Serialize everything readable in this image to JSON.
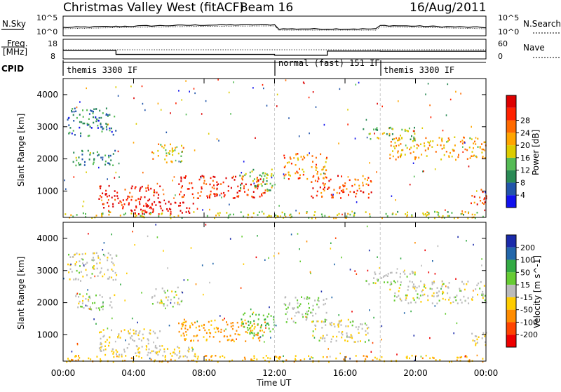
{
  "header": {
    "title": "Christmas Valley West (fitACF)",
    "beam": "Beam 16",
    "date": "16/Aug/2011"
  },
  "noise_panel": {
    "left_label": "N.Sky",
    "left_ticks": [
      "10^5",
      "10^0"
    ],
    "right_ticks": [
      "10^5",
      "10^0"
    ],
    "right_label": "N.Search"
  },
  "freq_panel": {
    "label_line1": "Freq.",
    "label_line2": "[MHz]",
    "left_ticks": [
      "18",
      "8"
    ],
    "right_ticks": [
      "60",
      "0"
    ],
    "right_label": "Nave"
  },
  "cpid_panel": {
    "label": "CPID",
    "segments": [
      {
        "name": "themis 3300 IF",
        "start_hour": 0,
        "end_hour": 12
      },
      {
        "name": "normal (fast) 151 IF",
        "start_hour": 12,
        "end_hour": 18
      },
      {
        "name": "themis 3300 IF",
        "start_hour": 18,
        "end_hour": 24
      }
    ]
  },
  "x_axis": {
    "label": "Time UT",
    "ticks": [
      "00:00",
      "04:00",
      "08:00",
      "12:00",
      "16:00",
      "20:00",
      "00:00"
    ]
  },
  "range_axis": {
    "label": "Slant Range [km]",
    "ticks": [
      "1000",
      "2000",
      "3000",
      "4000"
    ]
  },
  "power_scale": {
    "label": "Power [dB]",
    "ticks": [
      "4",
      "8",
      "12",
      "16",
      "20",
      "24",
      "28"
    ],
    "colors": [
      "#1111ee",
      "#2255aa",
      "#2a8a55",
      "#55bb55",
      "#ddcc00",
      "#ffa500",
      "#ff6a00",
      "#ff2200",
      "#dd0000"
    ]
  },
  "velocity_scale": {
    "label": "Velocity [m s^-1]",
    "ticks": [
      "200",
      "100",
      "50",
      "15",
      "-15",
      "-50",
      "-100",
      "-200"
    ],
    "colors": [
      "#1a2aaa",
      "#2266aa",
      "#33aa44",
      "#66cc33",
      "#bbbbbb",
      "#ffcc00",
      "#ff8c00",
      "#ff4400",
      "#ee0000"
    ]
  },
  "chart_data": {
    "type": "heatmap",
    "panels": [
      "Power [dB]",
      "Velocity [m s^-1]"
    ],
    "x_range_hours": [
      0,
      24
    ],
    "y_range_km": [
      180,
      4500
    ],
    "power_range_db": [
      0,
      30
    ],
    "velocity_range_ms": [
      -250,
      250
    ],
    "frequency_mhz": [
      {
        "start_hour": 0,
        "end_hour": 3,
        "value": 12.4
      },
      {
        "start_hour": 3,
        "end_hour": 12,
        "value": 10.3
      },
      {
        "start_hour": 12,
        "end_hour": 15,
        "value": 9.9
      },
      {
        "start_hour": 15,
        "end_hour": 18,
        "value": 12.0
      },
      {
        "start_hour": 18,
        "end_hour": 24,
        "value": 11.9
      }
    ],
    "scatter_regions": [
      {
        "t0": 0.2,
        "t1": 3.0,
        "r0": 2700,
        "r1": 3600,
        "power": 7,
        "velocity": -5
      },
      {
        "t0": 0.5,
        "t1": 3.0,
        "r0": 1800,
        "r1": 2300,
        "power": 9,
        "velocity": 5
      },
      {
        "t0": 2.0,
        "t1": 5.5,
        "r0": 400,
        "r1": 1200,
        "power": 27,
        "velocity": -10
      },
      {
        "t0": 4.0,
        "t1": 7.5,
        "r0": 300,
        "r1": 700,
        "power": 29,
        "velocity": -10
      },
      {
        "t0": 5.0,
        "t1": 6.8,
        "r0": 1900,
        "r1": 2500,
        "power": 16,
        "velocity": 5
      },
      {
        "t0": 6.5,
        "t1": 11.5,
        "r0": 800,
        "r1": 1500,
        "power": 26,
        "velocity": -60
      },
      {
        "t0": 10.0,
        "t1": 12.0,
        "r0": 1000,
        "r1": 1700,
        "power": 12,
        "velocity": 50
      },
      {
        "t0": 12.5,
        "t1": 15.0,
        "r0": 1400,
        "r1": 2200,
        "power": 20,
        "velocity": 10
      },
      {
        "t0": 14.0,
        "t1": 17.5,
        "r0": 800,
        "r1": 1500,
        "power": 23,
        "velocity": -5
      },
      {
        "t0": 18.5,
        "t1": 24.0,
        "r0": 2000,
        "r1": 2700,
        "power": 18,
        "velocity": 0
      },
      {
        "t0": 17.0,
        "t1": 20.0,
        "r0": 2600,
        "r1": 3000,
        "power": 12,
        "velocity": 5
      },
      {
        "t0": 23.0,
        "t1": 24.0,
        "r0": 600,
        "r1": 1100,
        "power": 24,
        "velocity": -10
      },
      {
        "t0": 0.0,
        "t1": 24.0,
        "r0": 180,
        "r1": 380,
        "power": 14,
        "velocity": -40
      }
    ]
  }
}
